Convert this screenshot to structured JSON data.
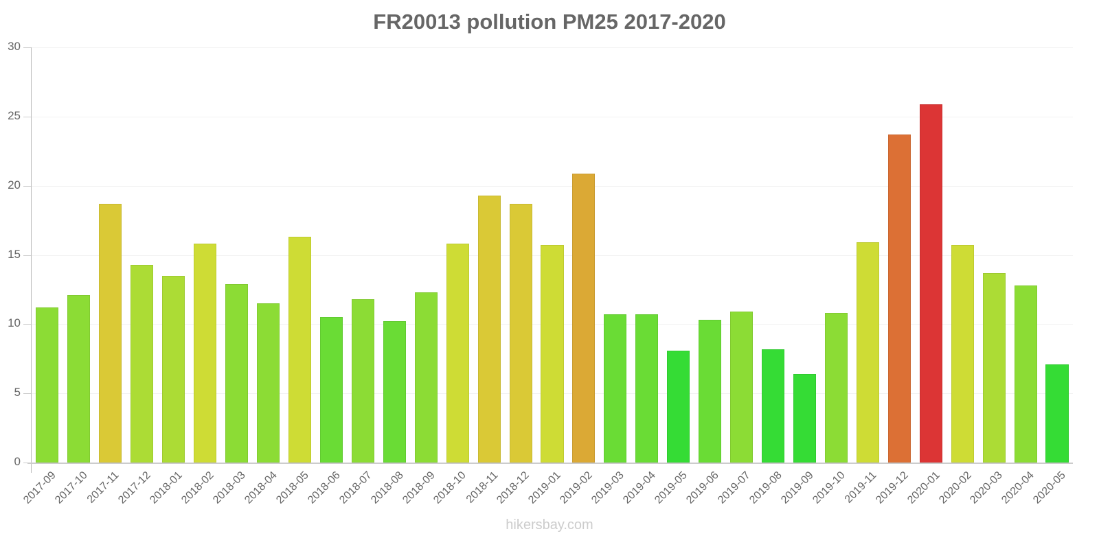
{
  "title": "FR20013 pollution PM25 2017-2020",
  "watermark": "hikersbay.com",
  "y_ticks": [
    "0",
    "5",
    "10",
    "15",
    "20",
    "25",
    "30"
  ],
  "chart_data": {
    "type": "bar",
    "title": "FR20013 pollution PM25 2017-2020",
    "xlabel": "",
    "ylabel": "",
    "ylim": [
      0,
      30
    ],
    "grid": true,
    "legend": null,
    "categories": [
      "2017-09",
      "2017-10",
      "2017-11",
      "2017-12",
      "2018-01",
      "2018-02",
      "2018-03",
      "2018-04",
      "2018-05",
      "2018-06",
      "2018-07",
      "2018-08",
      "2018-09",
      "2018-10",
      "2018-11",
      "2018-12",
      "2019-01",
      "2019-02",
      "2019-03",
      "2019-04",
      "2019-05",
      "2019-06",
      "2019-07",
      "2019-08",
      "2019-09",
      "2019-10",
      "2019-11",
      "2019-12",
      "2020-01",
      "2020-02",
      "2020-03",
      "2020-04",
      "2020-05"
    ],
    "values": [
      11.2,
      12.1,
      18.7,
      14.3,
      13.5,
      15.8,
      12.9,
      11.5,
      16.3,
      10.5,
      11.8,
      10.2,
      12.3,
      15.8,
      19.3,
      18.7,
      15.7,
      20.9,
      10.7,
      10.7,
      8.1,
      10.3,
      10.9,
      8.2,
      6.4,
      10.8,
      15.9,
      23.7,
      25.9,
      15.7,
      13.7,
      12.8,
      7.1
    ],
    "colors": [
      "#8cdc35",
      "#8cdc35",
      "#dac936",
      "#acdc35",
      "#acdc35",
      "#cedc35",
      "#8cdc35",
      "#8cdc35",
      "#cedc35",
      "#6adc35",
      "#8cdc35",
      "#6adc35",
      "#8cdc35",
      "#cedc35",
      "#dac936",
      "#dac936",
      "#cedc35",
      "#dba935",
      "#6adc35",
      "#6adc35",
      "#35dc35",
      "#6adc35",
      "#8cdc35",
      "#35dc35",
      "#35dc35",
      "#8cdc35",
      "#cedc35",
      "#dc7035",
      "#dc3535",
      "#cedc35",
      "#acdc35",
      "#8cdc35",
      "#35dc35"
    ]
  }
}
